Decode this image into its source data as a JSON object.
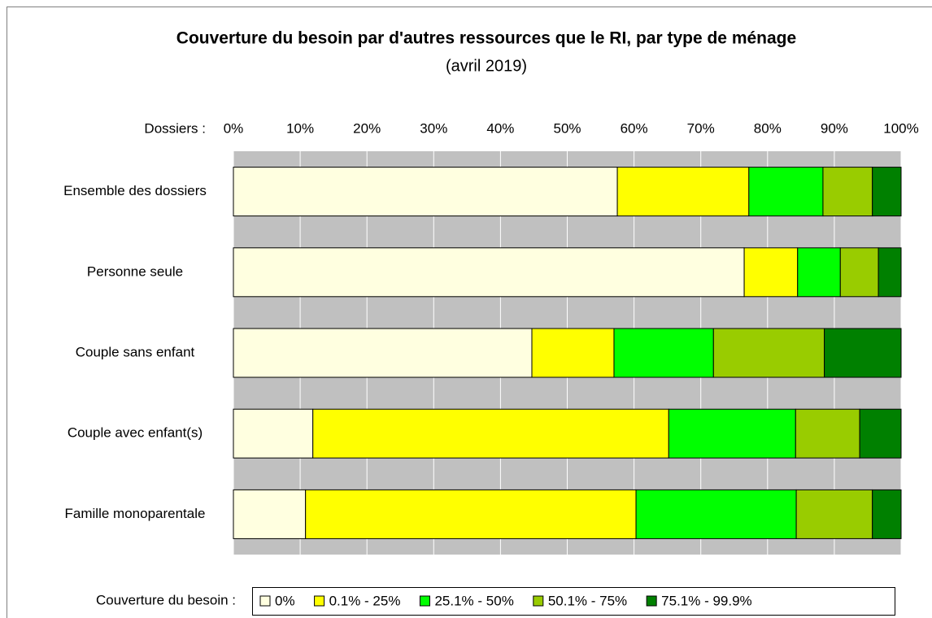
{
  "chart_data": {
    "type": "stacked_barh",
    "title": "Couverture du besoin par d'autres ressources que le RI, par type de ménage",
    "subtitle": "(avril 2019)",
    "x_label": "Dossiers :",
    "legend_title": "Couverture du besoin :",
    "categories": [
      "Ensemble des dossiers",
      "Personne seule",
      "Couple sans enfant",
      "Couple avec enfant(s)",
      "Famille monoparentale"
    ],
    "series": [
      {
        "name": "0%",
        "color": "#ffffe0",
        "values": [
          57.5,
          76.5,
          44.7,
          11.9,
          10.8
        ]
      },
      {
        "name": "0.1% - 25%",
        "color": "#ffff00",
        "values": [
          19.7,
          8.0,
          12.3,
          53.3,
          49.5
        ]
      },
      {
        "name": "25.1% - 50%",
        "color": "#00ff00",
        "values": [
          11.1,
          6.4,
          14.9,
          19.0,
          24.0
        ]
      },
      {
        "name": "50.1% - 75%",
        "color": "#99cc00",
        "values": [
          7.4,
          5.7,
          16.6,
          9.6,
          11.4
        ]
      },
      {
        "name": "75.1% - 99.9%",
        "color": "#008000",
        "values": [
          4.3,
          3.4,
          11.5,
          6.2,
          4.3
        ]
      }
    ],
    "xlim": [
      0,
      100
    ],
    "xticks": [
      {
        "value": 0,
        "label": "0%"
      },
      {
        "value": 10,
        "label": "10%"
      },
      {
        "value": 20,
        "label": "20%"
      },
      {
        "value": 30,
        "label": "30%"
      },
      {
        "value": 40,
        "label": "40%"
      },
      {
        "value": 50,
        "label": "50%"
      },
      {
        "value": 60,
        "label": "60%"
      },
      {
        "value": 70,
        "label": "70%"
      },
      {
        "value": 80,
        "label": "80%"
      },
      {
        "value": 90,
        "label": "90%"
      },
      {
        "value": 100,
        "label": "100%"
      }
    ],
    "grid": true
  }
}
